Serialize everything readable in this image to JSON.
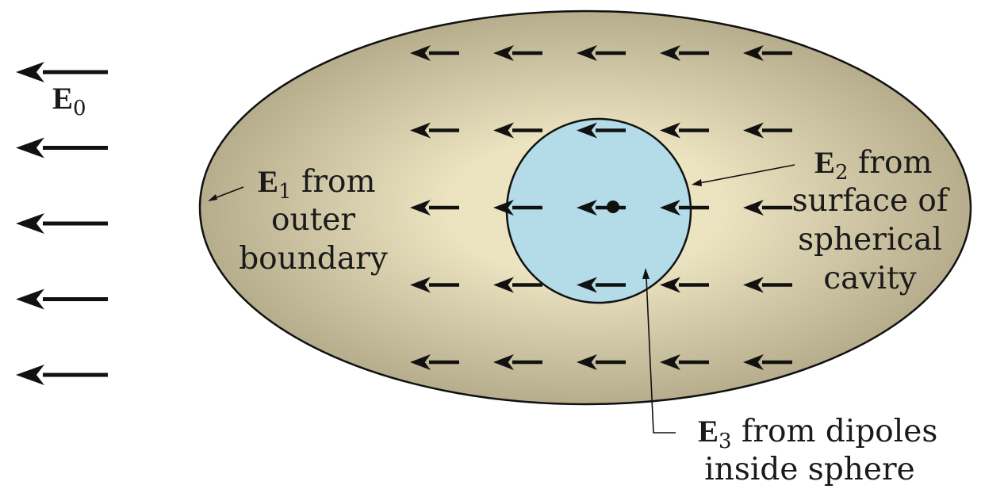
{
  "colors": {
    "ellipse_center": "#ece3c1",
    "ellipse_edge": "#b6ad8c",
    "cavity_fill": "#b3dbe8",
    "stroke": "#111111"
  },
  "external_field": {
    "symbol": "E",
    "subscript": "0",
    "arrow_count": 5
  },
  "labels": {
    "e1": {
      "symbol": "E",
      "subscript": "1",
      "line1": " from",
      "line2": "outer",
      "line3": "boundary"
    },
    "e2": {
      "symbol": "E",
      "subscript": "2",
      "line1": " from",
      "line2": "surface of",
      "line3": "spherical",
      "line4": "cavity"
    },
    "e3": {
      "symbol": "E",
      "subscript": "3",
      "line1": " from dipoles",
      "line2": "inside sphere"
    }
  },
  "inner_field": {
    "rows": 5,
    "columns": 5
  }
}
